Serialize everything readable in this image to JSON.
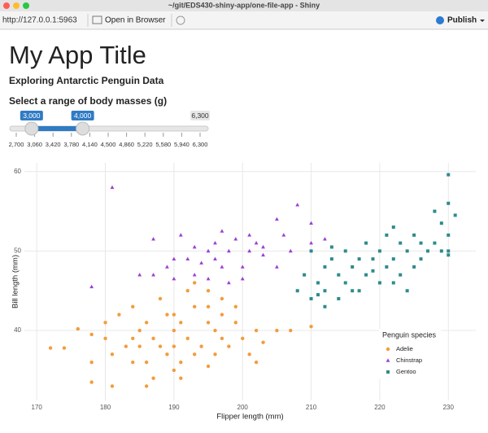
{
  "window": {
    "title": "~/git/EDS430-shiny-app/one-file-app - Shiny"
  },
  "toolbar": {
    "url": "http://127.0.0.1:5963",
    "open_button": "Open in Browser",
    "publish_button": "Publish"
  },
  "app": {
    "title": "My App Title",
    "subtitle": "Exploring Antarctic Penguin Data",
    "slider": {
      "label": "Select a range of body masses (g)",
      "min": 2700,
      "max": 6300,
      "values": [
        3000,
        4000
      ],
      "value_labels": [
        "3,000",
        "4,000"
      ],
      "max_label": {
        "value": 6300,
        "label": "6,300"
      },
      "ticks": [
        {
          "value": 2700,
          "label": "2,700"
        },
        {
          "value": 3060,
          "label": "3,060"
        },
        {
          "value": 3420,
          "label": "3,420"
        },
        {
          "value": 3780,
          "label": "3,780"
        },
        {
          "value": 4140,
          "label": "4,140"
        },
        {
          "value": 4500,
          "label": "4,500"
        },
        {
          "value": 4860,
          "label": "4,860"
        },
        {
          "value": 5220,
          "label": "5,220"
        },
        {
          "value": 5580,
          "label": "5,580"
        },
        {
          "value": 5940,
          "label": "5,940"
        },
        {
          "value": 6300,
          "label": "6,300"
        }
      ]
    }
  },
  "chart_data": {
    "type": "scatter",
    "x_label": "Flipper length (mm)",
    "y_label": "Bill length (mm)",
    "xlim": [
      168.2,
      234.0
    ],
    "ylim": [
      31.2,
      61.1
    ],
    "xticks": [
      170,
      180,
      190,
      200,
      210,
      220,
      230
    ],
    "yticks": [
      40,
      50,
      60
    ],
    "grid": true,
    "legend_title": "Penguin species",
    "legend_position": "inside-right",
    "series": [
      {
        "name": "Adelie",
        "color": "#f39c3c",
        "marker": "circle",
        "x": [
          172,
          174,
          176,
          178,
          178,
          180,
          180,
          181,
          182,
          183,
          184,
          184,
          185,
          185,
          186,
          186,
          187,
          187,
          188,
          189,
          189,
          190,
          190,
          190,
          191,
          191,
          192,
          193,
          193,
          194,
          195,
          195,
          196,
          196,
          197,
          197,
          198,
          199,
          200,
          201,
          202,
          203,
          205,
          207,
          193,
          195,
          197,
          210,
          181,
          178,
          186,
          191,
          184,
          188,
          190,
          192,
          195,
          199,
          202
        ],
        "y": [
          37.8,
          37.8,
          40.2,
          39.5,
          33.5,
          39,
          41,
          37,
          42,
          38,
          39,
          36,
          40,
          38,
          41,
          36,
          39,
          34,
          38,
          42,
          37,
          40,
          38,
          35,
          41,
          36,
          39,
          43,
          37,
          38,
          41,
          35.5,
          40,
          37,
          39,
          42,
          38,
          41,
          39,
          37,
          40,
          38.5,
          40,
          40,
          46,
          45,
          44,
          40.5,
          33,
          36,
          33,
          34,
          43,
          44,
          42,
          45,
          43,
          43,
          36
        ]
      },
      {
        "name": "Chinstrap",
        "color": "#9b3fd4",
        "marker": "triangle",
        "x": [
          181,
          178,
          187,
          187,
          189,
          190,
          190,
          191,
          192,
          193,
          193,
          195,
          195,
          196,
          196,
          197,
          197,
          198,
          198,
          199,
          200,
          200,
          201,
          201,
          202,
          203,
          205,
          205,
          206,
          207,
          208,
          210,
          212,
          210,
          203,
          194,
          185
        ],
        "y": [
          58,
          45.5,
          51.5,
          47,
          48,
          49,
          46.5,
          52,
          49,
          50.5,
          47,
          50,
          46.5,
          51,
          49,
          48,
          52.5,
          46,
          50,
          51.5,
          48,
          46.5,
          50,
          52,
          51,
          49.5,
          54,
          48,
          52,
          50,
          55.8,
          53.5,
          51.5,
          51,
          50.5,
          48.5,
          47
        ]
      },
      {
        "name": "Gentoo",
        "color": "#2e8b8b",
        "marker": "square",
        "x": [
          208,
          209,
          210,
          210,
          211,
          212,
          212,
          213,
          214,
          214,
          215,
          215,
          216,
          216,
          217,
          218,
          218,
          219,
          220,
          220,
          221,
          221,
          222,
          222,
          223,
          223,
          224,
          225,
          225,
          226,
          227,
          228,
          229,
          230,
          230,
          230,
          230,
          230,
          231,
          228,
          224,
          217,
          212,
          211,
          213,
          219,
          222,
          226,
          229
        ],
        "y": [
          45,
          47,
          44,
          50,
          46,
          48,
          45,
          49,
          47,
          44,
          50,
          46,
          48,
          45,
          49,
          51,
          47,
          49,
          46,
          50,
          48,
          52,
          49,
          46,
          51,
          47,
          50,
          52,
          48,
          51,
          50,
          51,
          53.5,
          50,
          59.6,
          56,
          49.5,
          52,
          54.5,
          55,
          45,
          45,
          43,
          44.5,
          50.5,
          47.5,
          53,
          49,
          50
        ]
      }
    ]
  }
}
